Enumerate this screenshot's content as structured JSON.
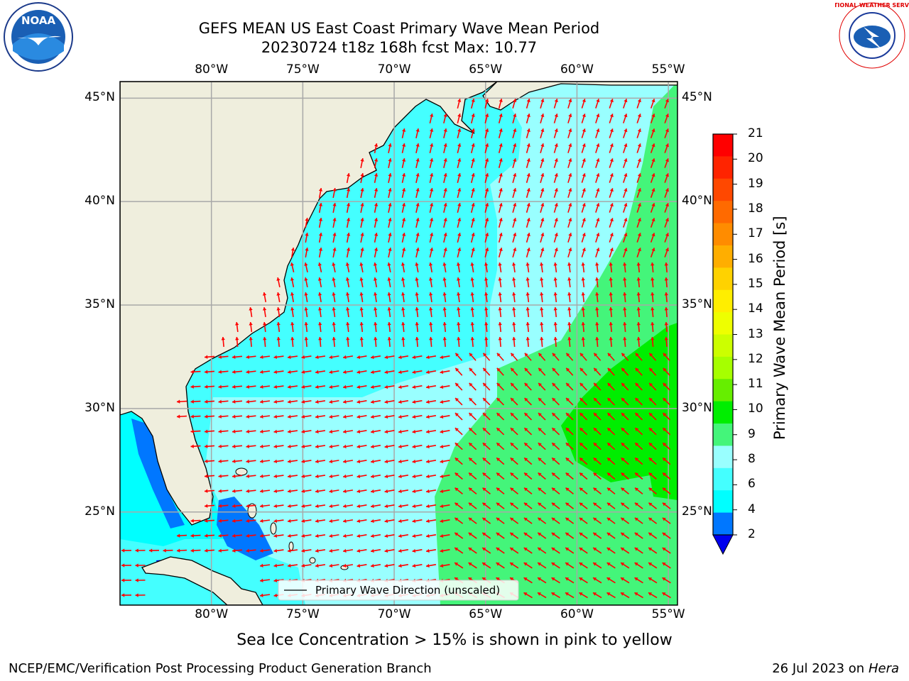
{
  "header": {
    "title_line1": "GEFS MEAN US East Coast Primary Wave Mean Period",
    "title_line2": "20230724 t18z 168h fcst   Max: 10.77"
  },
  "logos": {
    "left": {
      "icon": "noaa-logo-icon",
      "text": "NOAA"
    },
    "right": {
      "icon": "nws-logo-icon",
      "text": "NATIONAL WEATHER SERVICE"
    }
  },
  "map": {
    "lon_labels": [
      "80°W",
      "75°W",
      "70°W",
      "65°W",
      "60°W",
      "55°W"
    ],
    "lat_labels": [
      "45°N",
      "40°N",
      "35°N",
      "30°N",
      "25°N"
    ],
    "lon_range": [
      -85,
      -54.5
    ],
    "lat_range": [
      20.5,
      45.8
    ],
    "grid": true,
    "legend": {
      "label": "Primary Wave Direction (unscaled)",
      "placement": "bottom-center"
    },
    "arrow_color": "#ff0000"
  },
  "colorbar": {
    "title": "Primary Wave Mean Period [s]",
    "ticks": [
      "21",
      "20",
      "19",
      "18",
      "17",
      "16",
      "15",
      "14",
      "13",
      "12",
      "11",
      "10",
      "9",
      "8",
      "6",
      "4",
      "2"
    ],
    "colors": [
      "#ff0000",
      "#ff2400",
      "#ff4800",
      "#ff6a00",
      "#ff8c00",
      "#ffae00",
      "#ffd200",
      "#ffee00",
      "#eeff00",
      "#ccff00",
      "#a6ff00",
      "#66ee00",
      "#00ee00",
      "#44f57a",
      "#99ffff",
      "#44ffff",
      "#00ffff",
      "#0077ff"
    ],
    "extend_color": "#0000ee"
  },
  "subcaption": "Sea Ice Concentration > 15% is shown in pink to yellow",
  "footer": {
    "left": "NCEP/EMC/Verification Post Processing Product Generation Branch",
    "right_date": "26 Jul 2023 on",
    "right_machine": "Hera"
  }
}
